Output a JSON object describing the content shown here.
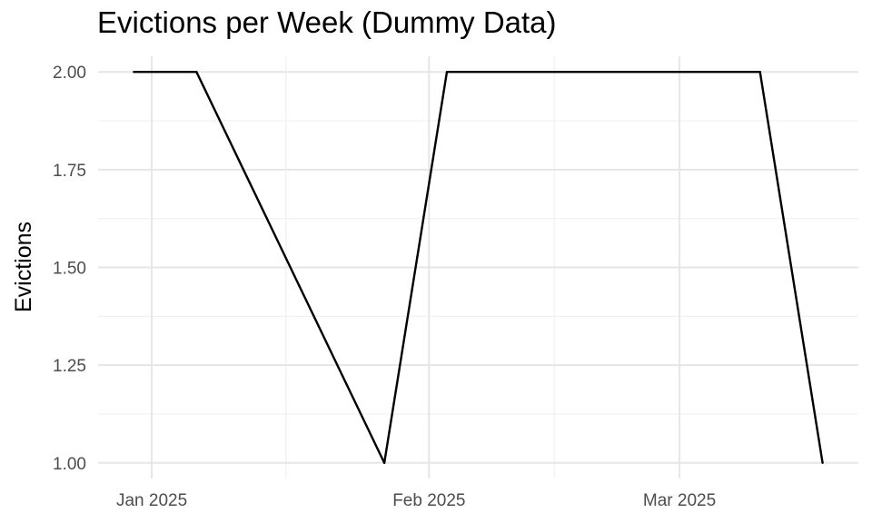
{
  "chart_data": {
    "type": "line",
    "title": "Evictions per Week (Dummy Data)",
    "xlabel": "",
    "ylabel": "Evictions",
    "x_type": "date",
    "xlim": [
      "2024-12-26",
      "2025-03-21"
    ],
    "ylim": [
      0.96,
      2.04
    ],
    "grid": true,
    "legend": "none",
    "line_color": "#000000",
    "x_ticks": [
      {
        "value": "2025-01-01",
        "label": "Jan 2025"
      },
      {
        "value": "2025-02-01",
        "label": "Feb 2025"
      },
      {
        "value": "2025-03-01",
        "label": "Mar 2025"
      }
    ],
    "x_minor_ticks": [
      "2025-01-16",
      "2025-02-15"
    ],
    "y_ticks": [
      {
        "value": 1.0,
        "label": "1.00"
      },
      {
        "value": 1.25,
        "label": "1.25"
      },
      {
        "value": 1.5,
        "label": "1.50"
      },
      {
        "value": 1.75,
        "label": "1.75"
      },
      {
        "value": 2.0,
        "label": "2.00"
      }
    ],
    "y_minor_ticks": [
      1.125,
      1.375,
      1.625,
      1.875
    ],
    "series": [
      {
        "points": [
          {
            "x": "2024-12-30",
            "y": 2
          },
          {
            "x": "2025-01-06",
            "y": 2
          },
          {
            "x": "2025-01-27",
            "y": 1
          },
          {
            "x": "2025-02-03",
            "y": 2
          },
          {
            "x": "2025-03-10",
            "y": 2
          },
          {
            "x": "2025-03-17",
            "y": 1
          }
        ]
      }
    ]
  }
}
